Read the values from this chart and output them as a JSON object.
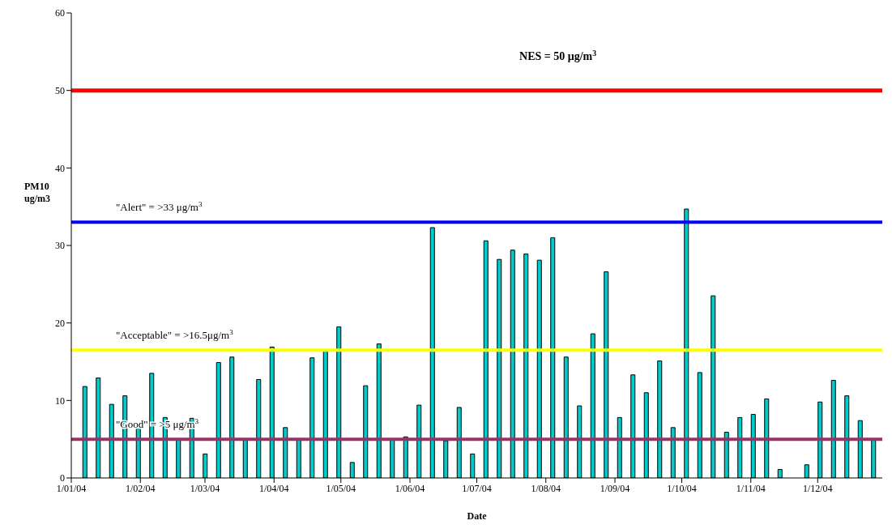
{
  "chart_data": {
    "type": "bar",
    "xlabel": "Date",
    "ylabel": "PM10\nug/m3",
    "x": [
      "2004-01-07",
      "2004-01-13",
      "2004-01-19",
      "2004-01-25",
      "2004-01-31",
      "2004-02-06",
      "2004-02-12",
      "2004-02-18",
      "2004-02-24",
      "2004-03-01",
      "2004-03-07",
      "2004-03-13",
      "2004-03-19",
      "2004-03-25",
      "2004-03-31",
      "2004-04-06",
      "2004-04-12",
      "2004-04-18",
      "2004-04-24",
      "2004-04-30",
      "2004-05-06",
      "2004-05-12",
      "2004-05-18",
      "2004-05-24",
      "2004-05-30",
      "2004-06-05",
      "2004-06-11",
      "2004-06-17",
      "2004-06-23",
      "2004-06-29",
      "2004-07-05",
      "2004-07-11",
      "2004-07-17",
      "2004-07-23",
      "2004-07-29",
      "2004-08-04",
      "2004-08-10",
      "2004-08-16",
      "2004-08-22",
      "2004-08-28",
      "2004-09-03",
      "2004-09-09",
      "2004-09-15",
      "2004-09-21",
      "2004-09-27",
      "2004-10-03",
      "2004-10-09",
      "2004-10-15",
      "2004-10-21",
      "2004-10-27",
      "2004-11-02",
      "2004-11-08",
      "2004-11-14",
      "2004-11-20",
      "2004-11-26",
      "2004-12-02",
      "2004-12-08",
      "2004-12-14",
      "2004-12-20",
      "2004-12-26"
    ],
    "values": [
      11.8,
      12.9,
      9.5,
      10.6,
      6.8,
      13.5,
      7.8,
      5.0,
      7.7,
      3.1,
      14.9,
      15.6,
      5.0,
      12.7,
      16.9,
      6.5,
      5.0,
      15.5,
      16.5,
      19.5,
      2.0,
      11.9,
      17.3,
      5.0,
      5.3,
      9.4,
      32.3,
      4.8,
      9.1,
      3.1,
      30.6,
      28.2,
      29.4,
      28.9,
      28.1,
      31.0,
      15.6,
      9.3,
      18.6,
      26.6,
      7.8,
      13.3,
      11.0,
      15.1,
      6.5,
      34.7,
      13.6,
      23.5,
      5.9,
      7.8,
      8.2,
      10.2,
      1.1,
      null,
      1.7,
      9.8,
      12.6,
      10.6,
      7.4,
      5.0
    ],
    "color": "#00cccc",
    "xlim": [
      "2004-01-01",
      "2004-12-30"
    ],
    "xticks": [
      {
        "value": "2004-01-01",
        "label": "1/01/04"
      },
      {
        "value": "2004-02-01",
        "label": "1/02/04"
      },
      {
        "value": "2004-03-01",
        "label": "1/03/04"
      },
      {
        "value": "2004-04-01",
        "label": "1/04/04"
      },
      {
        "value": "2004-05-01",
        "label": "1/05/04"
      },
      {
        "value": "2004-06-01",
        "label": "1/06/04"
      },
      {
        "value": "2004-07-01",
        "label": "1/07/04"
      },
      {
        "value": "2004-08-01",
        "label": "1/08/04"
      },
      {
        "value": "2004-09-01",
        "label": "1/09/04"
      },
      {
        "value": "2004-10-01",
        "label": "1/10/04"
      },
      {
        "value": "2004-11-01",
        "label": "1/11/04"
      },
      {
        "value": "2004-12-01",
        "label": "1/12/04"
      }
    ],
    "ylim": [
      0,
      60
    ],
    "yticks": [
      0,
      10,
      20,
      30,
      40,
      50,
      60
    ],
    "ref_lines": [
      {
        "axis": "y",
        "value": 50,
        "label": "NES  = 50   μg/m$^{3}$",
        "color": "#ff0000"
      },
      {
        "axis": "y",
        "value": 33,
        "label": "\"Alert\" = >33 μg/m$^{3}$",
        "color": "#0000ff"
      },
      {
        "axis": "y",
        "value": 16.5,
        "label": "\"Acceptable\" = >16.5μg/m$^{3}$",
        "color": "#ffff00"
      },
      {
        "axis": "y",
        "value": 5,
        "label": "\"Good\" = >5  μg/m$^{3}$",
        "color": "#993366"
      }
    ]
  }
}
